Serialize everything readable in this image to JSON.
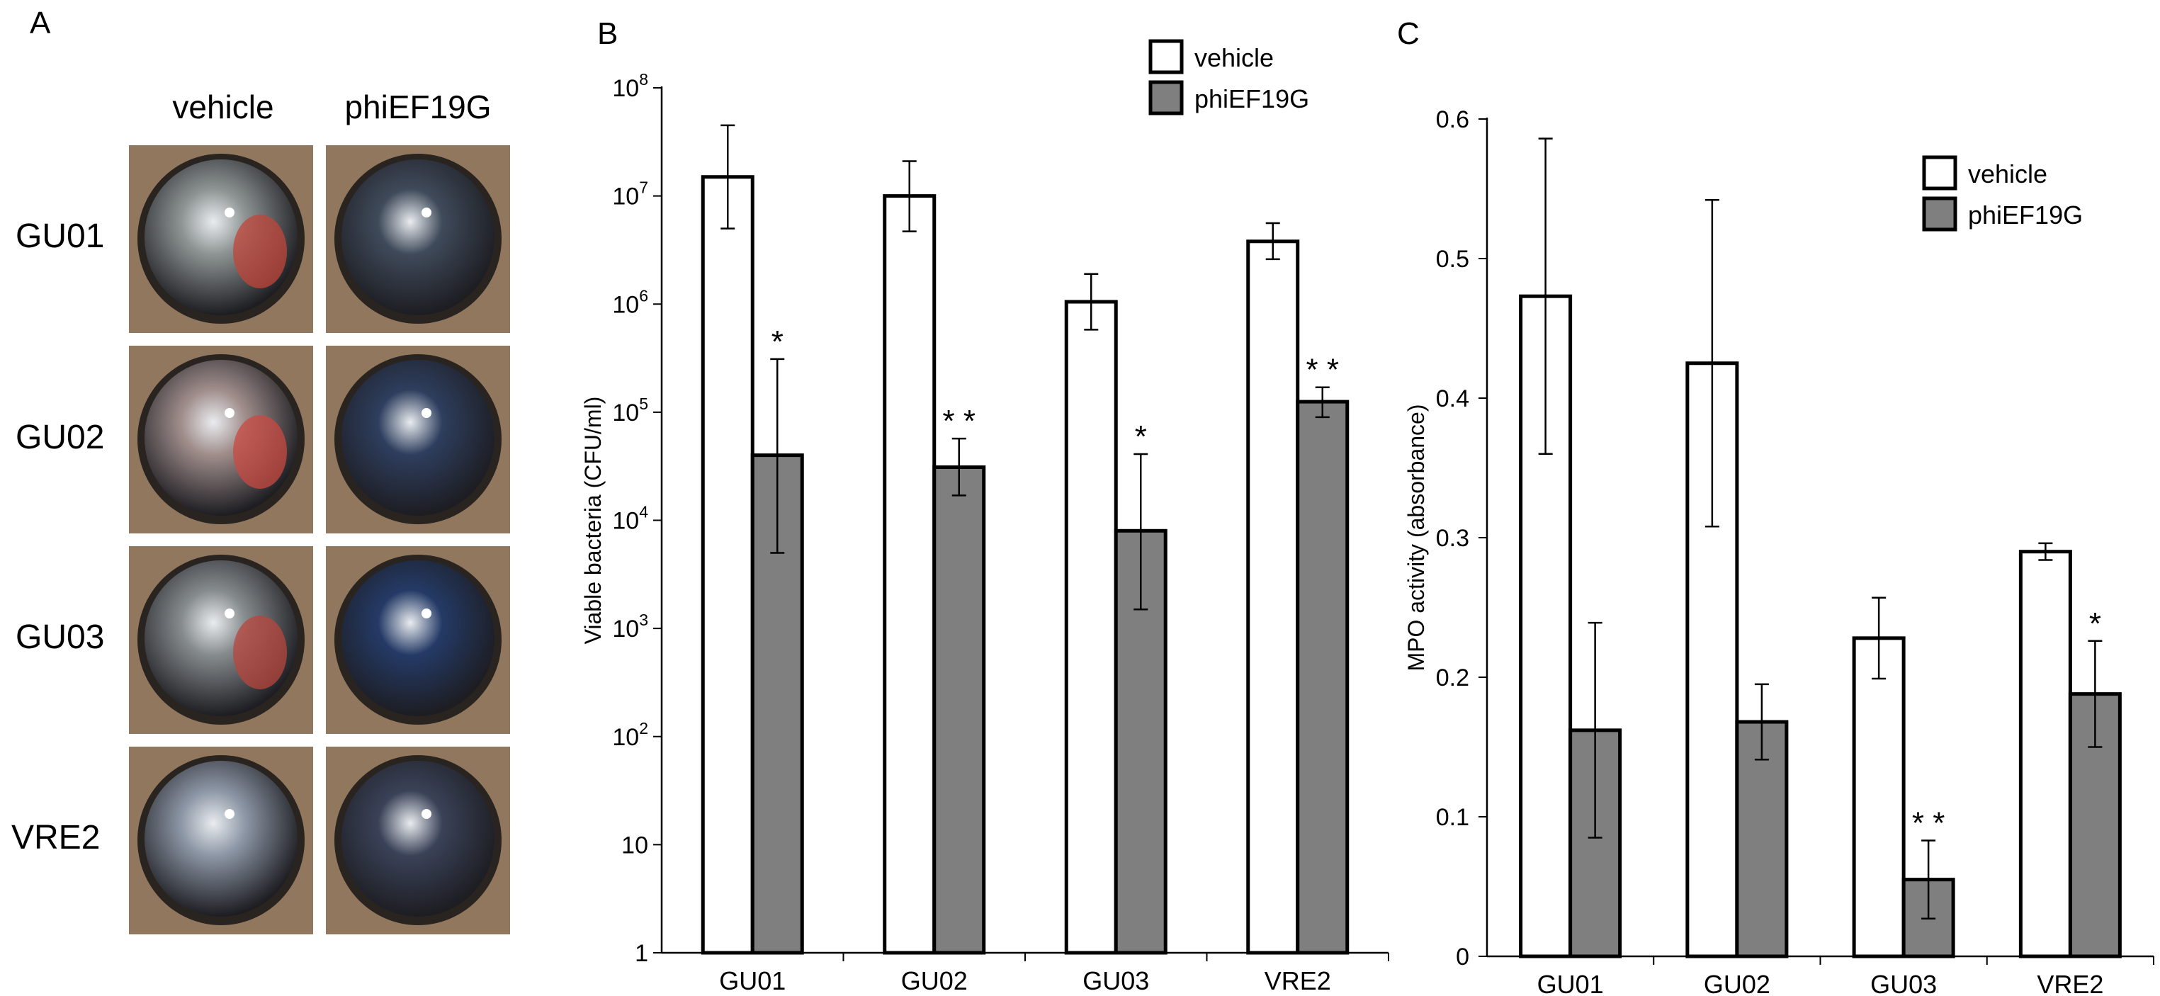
{
  "panel_A": {
    "letter": "A",
    "col_headers": [
      "vehicle",
      "phiEF19G"
    ],
    "rows": [
      {
        "label": "GU01",
        "vehicle_tint": "#8e9494",
        "vehicle_hemorrhage": "#c0463a",
        "phage_tint": "#3f4a5a"
      },
      {
        "label": "GU02",
        "vehicle_tint": "#a08e8c",
        "vehicle_hemorrhage": "#c84a42",
        "phage_tint": "#2e3e5e"
      },
      {
        "label": "GU03",
        "vehicle_tint": "#868b8e",
        "vehicle_hemorrhage": "#b8463c",
        "phage_tint": "#243a66"
      },
      {
        "label": "VRE2",
        "vehicle_tint": "#8d97a6",
        "vehicle_hemorrhage": "",
        "phage_tint": "#3a4258"
      }
    ]
  },
  "chart_data": [
    {
      "panel": "B",
      "type": "bar",
      "yscale": "log",
      "ylabel": "Viable bacteria (CFU/ml)",
      "xlabel": "",
      "ylim": [
        1,
        100000000
      ],
      "yticks": [
        {
          "value": 1,
          "base": "1",
          "exp": ""
        },
        {
          "value": 10,
          "base": "10",
          "exp": ""
        },
        {
          "value": 100,
          "base": "10",
          "exp": "2"
        },
        {
          "value": 1000,
          "base": "10",
          "exp": "3"
        },
        {
          "value": 10000,
          "base": "10",
          "exp": "4"
        },
        {
          "value": 100000,
          "base": "10",
          "exp": "5"
        },
        {
          "value": 1000000,
          "base": "10",
          "exp": "6"
        },
        {
          "value": 10000000,
          "base": "10",
          "exp": "7"
        },
        {
          "value": 100000000,
          "base": "10",
          "exp": "8"
        }
      ],
      "categories": [
        "GU01",
        "GU02",
        "GU03",
        "VRE2"
      ],
      "series": [
        {
          "name": "vehicle",
          "color": "#ffffff",
          "values": [
            15000000,
            10000000,
            1050000,
            3800000
          ],
          "err_low": [
            5000000,
            4700000,
            580000,
            2600000
          ],
          "err_high": [
            45000000,
            21000000,
            1900000,
            5600000
          ],
          "sig": [
            "",
            "",
            "",
            ""
          ]
        },
        {
          "name": "phiEF19G",
          "color": "#7f7f7f",
          "values": [
            40000,
            31000,
            8000,
            125000
          ],
          "err_low": [
            5000,
            17000,
            1500,
            90000
          ],
          "err_high": [
            310000,
            57000,
            41000,
            170000
          ],
          "sig": [
            "*",
            "**",
            "*",
            "**"
          ]
        }
      ],
      "legend": {
        "position": "top-right",
        "entries": [
          "vehicle",
          "phiEF19G"
        ]
      },
      "grid": false
    },
    {
      "panel": "C",
      "type": "bar",
      "yscale": "linear",
      "ylabel": "MPO activity (absorbance)",
      "xlabel": "",
      "ylim": [
        0,
        0.6
      ],
      "yticks": [
        {
          "value": 0,
          "label": "0"
        },
        {
          "value": 0.1,
          "label": "0.1"
        },
        {
          "value": 0.2,
          "label": "0.2"
        },
        {
          "value": 0.3,
          "label": "0.3"
        },
        {
          "value": 0.4,
          "label": "0.4"
        },
        {
          "value": 0.5,
          "label": "0.5"
        },
        {
          "value": 0.6,
          "label": "0.6"
        }
      ],
      "categories": [
        "GU01",
        "GU02",
        "GU03",
        "VRE2"
      ],
      "series": [
        {
          "name": "vehicle",
          "color": "#ffffff",
          "values": [
            0.473,
            0.425,
            0.228,
            0.29
          ],
          "err": [
            0.113,
            0.117,
            0.029,
            0.006
          ],
          "sig": [
            "",
            "",
            "",
            ""
          ]
        },
        {
          "name": "phiEF19G",
          "color": "#7f7f7f",
          "values": [
            0.162,
            0.168,
            0.055,
            0.188
          ],
          "err": [
            0.077,
            0.027,
            0.028,
            0.038
          ],
          "sig": [
            "",
            "",
            "**",
            "*"
          ]
        }
      ],
      "legend": {
        "position": "top-right",
        "entries": [
          "vehicle",
          "phiEF19G"
        ]
      },
      "grid": false
    }
  ]
}
